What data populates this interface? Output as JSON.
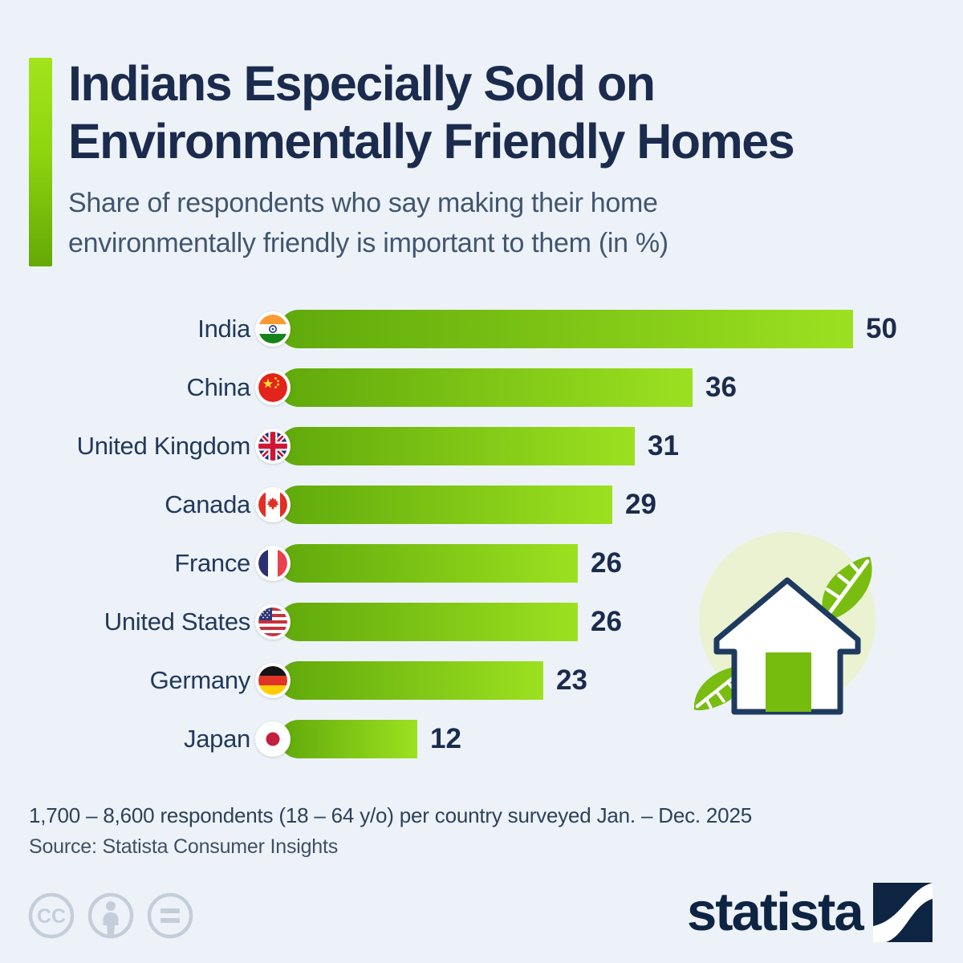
{
  "header": {
    "title_line1": "Indians Especially Sold on",
    "title_line2": "Environmentally Friendly Homes",
    "subtitle": "Share of respondents who say making their home environmentally friendly is important to them (in %)"
  },
  "chart_data": {
    "type": "bar",
    "orientation": "horizontal",
    "title": "Share of respondents who say making their home environmentally friendly is important to them (in %)",
    "categories": [
      "India",
      "China",
      "United Kingdom",
      "Canada",
      "France",
      "United States",
      "Germany",
      "Japan"
    ],
    "values": [
      50,
      36,
      31,
      29,
      26,
      26,
      23,
      12
    ],
    "unit": "%",
    "xlim": [
      0,
      50
    ],
    "grid": false,
    "legend": false,
    "flag_icons": [
      "india",
      "china",
      "united-kingdom",
      "canada",
      "france",
      "united-states",
      "germany",
      "japan"
    ],
    "bar_gradient": [
      "#60a90b",
      "#9ce120"
    ]
  },
  "footer": {
    "note": "1,700 – 8,600 respondents (18 – 64 y/o) per country surveyed Jan. – Dec. 2025",
    "source": "Source: Statista Consumer Insights"
  },
  "branding": {
    "logo_text": "statista",
    "license_icons": [
      "cc-icon",
      "attribution-icon",
      "no-derivatives-icon"
    ]
  },
  "colors": {
    "background": "#edf2f8",
    "title": "#1b2b4d",
    "subtitle": "#41566f",
    "label": "#21395b",
    "value": "#1b2b4d",
    "bar_start": "#60a90b",
    "bar_end": "#9ce120",
    "accent_top": "#a3e41c",
    "accent_bottom": "#64a805",
    "illustration_circle": "#eaf2d2",
    "illustration_green": "#79bd11",
    "outline_navy": "#1e3a5f",
    "license_gray": "#c4ceda",
    "logo_navy": "#0d2442"
  },
  "illustration": "eco-house-with-leaves"
}
